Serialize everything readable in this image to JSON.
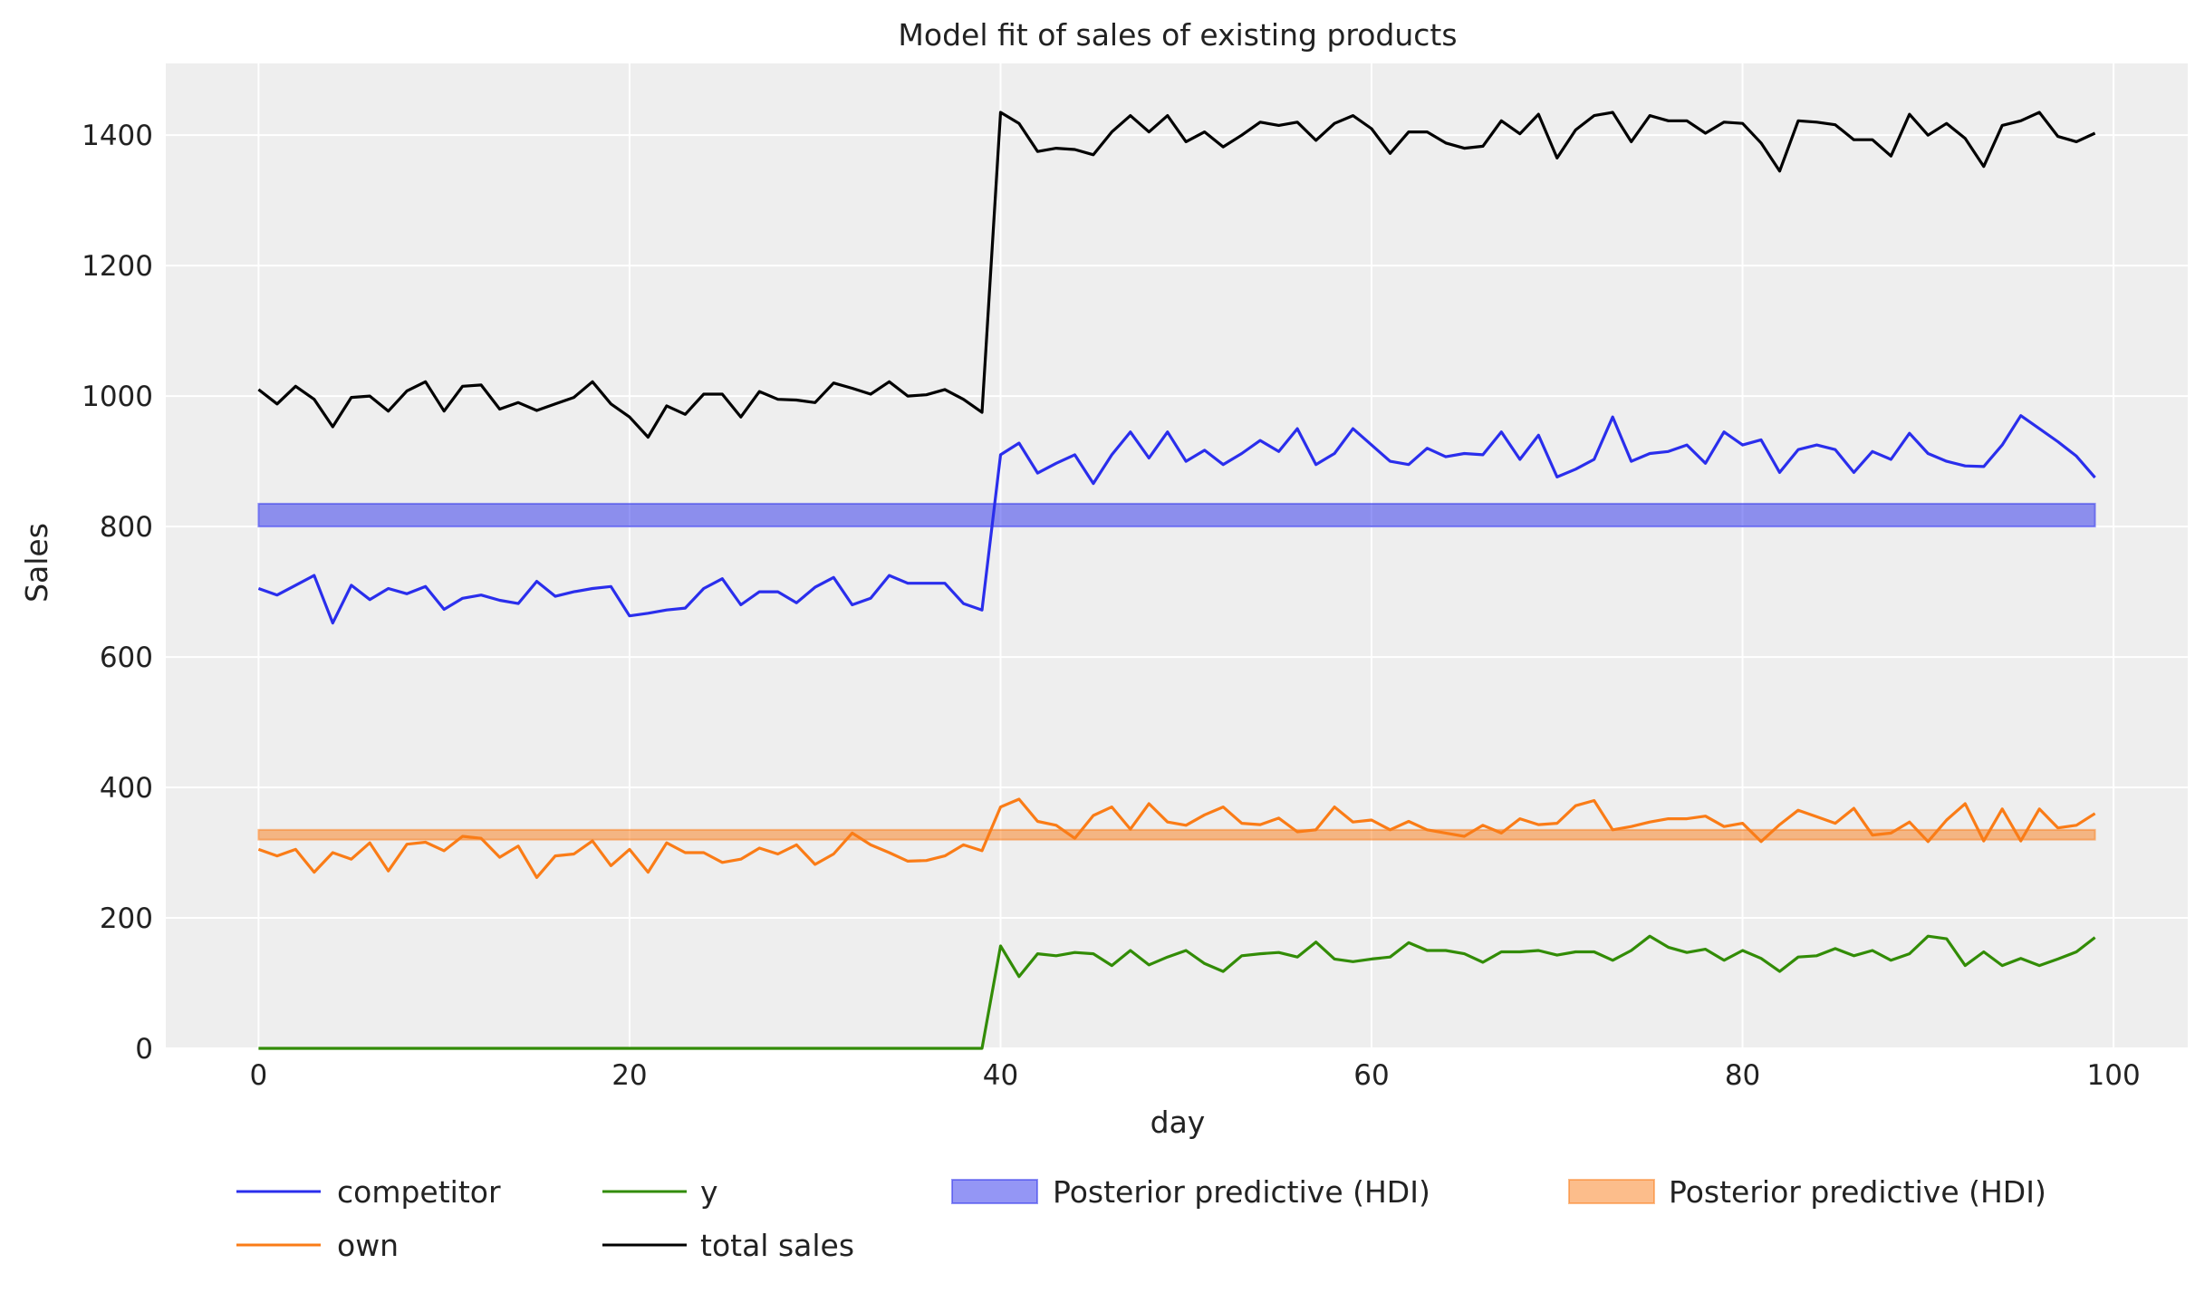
{
  "chart_data": {
    "type": "line",
    "title": "Model fit of sales of existing products",
    "xlabel": "day",
    "ylabel": "Sales",
    "xlim": [
      -5,
      104
    ],
    "ylim": [
      0,
      1510
    ],
    "xticks": [
      0,
      20,
      40,
      60,
      80,
      100
    ],
    "yticks": [
      0,
      200,
      400,
      600,
      800,
      1000,
      1200,
      1400
    ],
    "xtick_labels": [
      "0",
      "20",
      "40",
      "60",
      "80",
      "100"
    ],
    "ytick_labels": [
      "0",
      "200",
      "400",
      "600",
      "800",
      "1000",
      "1200",
      "1400"
    ],
    "grid": true,
    "background": "#eeeeee",
    "legend_placement": "bottom",
    "x": "0..99",
    "series": [
      {
        "name": "competitor",
        "color": "#2a2eec",
        "kind": "line",
        "values": [
          705,
          695,
          710,
          725,
          652,
          710,
          688,
          705,
          697,
          708,
          673,
          690,
          695,
          687,
          682,
          716,
          693,
          700,
          705,
          708,
          663,
          667,
          672,
          675,
          705,
          720,
          680,
          700,
          700,
          683,
          707,
          722,
          680,
          690,
          725,
          713,
          713,
          713,
          682,
          672,
          910,
          928,
          882,
          897,
          910,
          866,
          910,
          945,
          905,
          945,
          900,
          917,
          895,
          912,
          932,
          915,
          950,
          895,
          912,
          950,
          925,
          900,
          895,
          920,
          907,
          912,
          910,
          945,
          903,
          940,
          876,
          888,
          903,
          968,
          900,
          912,
          915,
          925,
          897,
          945,
          925,
          933,
          883,
          918,
          925,
          918,
          883,
          915,
          903,
          943,
          912,
          900,
          893,
          892,
          925,
          970,
          950,
          930,
          908,
          875
        ]
      },
      {
        "name": "own",
        "color": "#fa7c17",
        "kind": "line",
        "values": [
          305,
          295,
          305,
          270,
          300,
          290,
          315,
          272,
          313,
          316,
          303,
          325,
          322,
          293,
          310,
          262,
          295,
          298,
          318,
          280,
          305,
          270,
          315,
          300,
          300,
          285,
          290,
          307,
          298,
          312,
          282,
          298,
          330,
          312,
          300,
          287,
          288,
          295,
          312,
          303,
          370,
          382,
          348,
          342,
          322,
          357,
          370,
          336,
          375,
          347,
          342,
          358,
          370,
          345,
          343,
          353,
          332,
          335,
          370,
          347,
          350,
          335,
          348,
          335,
          330,
          325,
          342,
          330,
          352,
          343,
          345,
          372,
          380,
          335,
          340,
          347,
          352,
          352,
          356,
          340,
          345,
          317,
          343,
          365,
          355,
          345,
          368,
          327,
          330,
          347,
          317,
          350,
          375,
          318,
          367,
          318,
          367,
          338,
          342,
          360
        ]
      },
      {
        "name": "y",
        "color": "#328c06",
        "kind": "line",
        "values": [
          0,
          0,
          0,
          0,
          0,
          0,
          0,
          0,
          0,
          0,
          0,
          0,
          0,
          0,
          0,
          0,
          0,
          0,
          0,
          0,
          0,
          0,
          0,
          0,
          0,
          0,
          0,
          0,
          0,
          0,
          0,
          0,
          0,
          0,
          0,
          0,
          0,
          0,
          0,
          0,
          157,
          110,
          145,
          142,
          147,
          145,
          127,
          150,
          128,
          140,
          150,
          130,
          118,
          142,
          145,
          147,
          140,
          163,
          137,
          133,
          137,
          140,
          162,
          150,
          150,
          145,
          132,
          148,
          148,
          150,
          143,
          148,
          148,
          135,
          150,
          172,
          155,
          147,
          152,
          135,
          150,
          138,
          118,
          140,
          142,
          153,
          142,
          150,
          135,
          145,
          172,
          168,
          127,
          148,
          127,
          138,
          127,
          137,
          148,
          170
        ]
      },
      {
        "name": "total sales",
        "color": "#000000",
        "kind": "line",
        "values": [
          1010,
          988,
          1015,
          995,
          953,
          998,
          1000,
          977,
          1008,
          1022,
          977,
          1015,
          1017,
          980,
          990,
          978,
          988,
          998,
          1022,
          988,
          968,
          937,
          985,
          972,
          1003,
          1003,
          968,
          1007,
          995,
          994,
          990,
          1020,
          1012,
          1003,
          1022,
          1000,
          1002,
          1010,
          995,
          975,
          1435,
          1418,
          1375,
          1380,
          1378,
          1370,
          1405,
          1430,
          1405,
          1430,
          1390,
          1405,
          1382,
          1400,
          1420,
          1415,
          1420,
          1392,
          1418,
          1430,
          1410,
          1372,
          1405,
          1405,
          1388,
          1380,
          1383,
          1422,
          1402,
          1432,
          1365,
          1408,
          1430,
          1435,
          1390,
          1430,
          1422,
          1422,
          1403,
          1420,
          1418,
          1388,
          1345,
          1422,
          1420,
          1416,
          1393,
          1393,
          1368,
          1432,
          1400,
          1418,
          1395,
          1352,
          1415,
          1422,
          1435,
          1398,
          1390,
          1403
        ]
      },
      {
        "name": "Posterior predictive (HDI)",
        "color": "#2a2eec",
        "kind": "band",
        "lower": 800,
        "upper": 835,
        "x_range": [
          0,
          99
        ]
      },
      {
        "name": "Posterior predictive (HDI)",
        "color": "#fa7c17",
        "kind": "band",
        "lower": 320,
        "upper": 335,
        "x_range": [
          0,
          99
        ]
      }
    ],
    "legend_order": [
      "competitor",
      "own",
      "y",
      "total sales",
      "Posterior predictive (HDI)",
      "Posterior predictive (HDI)"
    ]
  },
  "legend": {
    "competitor": "competitor",
    "own": "own",
    "y": "y",
    "total": "total sales",
    "hdi_blue": "Posterior predictive (HDI)",
    "hdi_orange": "Posterior predictive (HDI)"
  }
}
